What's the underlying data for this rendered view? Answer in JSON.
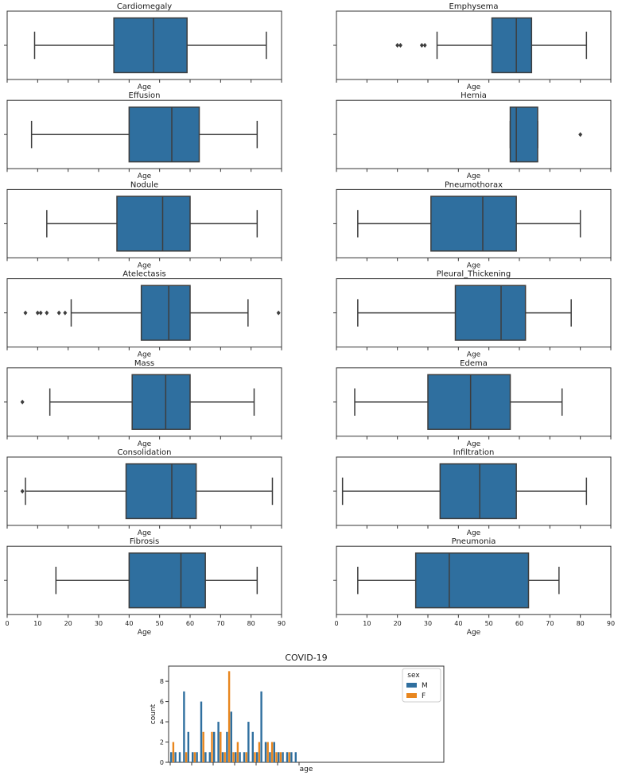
{
  "chart_data": {
    "boxplots": {
      "type": "boxplot",
      "xlabel": "Age",
      "xlim": [
        0,
        90
      ],
      "xticks": [
        0,
        10,
        20,
        30,
        40,
        50,
        60,
        70,
        80,
        90
      ],
      "box_color": "#2f6f9f",
      "panels": [
        {
          "title": "Cardiomegaly",
          "whisker_low": 9,
          "q1": 35,
          "median": 48,
          "q3": 59,
          "whisker_high": 85,
          "outliers": []
        },
        {
          "title": "Emphysema",
          "whisker_low": 33,
          "q1": 51,
          "median": 59,
          "q3": 64,
          "whisker_high": 82,
          "outliers": [
            20,
            21,
            28,
            29
          ]
        },
        {
          "title": "Effusion",
          "whisker_low": 8,
          "q1": 40,
          "median": 54,
          "q3": 63,
          "whisker_high": 82,
          "outliers": []
        },
        {
          "title": "Hernia",
          "whisker_low": 57,
          "q1": 57,
          "median": 59,
          "q3": 66,
          "whisker_high": 66,
          "outliers": [
            80
          ]
        },
        {
          "title": "Nodule",
          "whisker_low": 13,
          "q1": 36,
          "median": 51,
          "q3": 60,
          "whisker_high": 82,
          "outliers": []
        },
        {
          "title": "Pneumothorax",
          "whisker_low": 7,
          "q1": 31,
          "median": 48,
          "q3": 59,
          "whisker_high": 80,
          "outliers": []
        },
        {
          "title": "Atelectasis",
          "whisker_low": 21,
          "q1": 44,
          "median": 53,
          "q3": 60,
          "whisker_high": 79,
          "outliers": [
            6,
            10,
            11,
            13,
            17,
            19,
            89
          ]
        },
        {
          "title": "Pleural_Thickening",
          "whisker_low": 7,
          "q1": 39,
          "median": 54,
          "q3": 62,
          "whisker_high": 77,
          "outliers": []
        },
        {
          "title": "Mass",
          "whisker_low": 14,
          "q1": 41,
          "median": 52,
          "q3": 60,
          "whisker_high": 81,
          "outliers": [
            5
          ]
        },
        {
          "title": "Edema",
          "whisker_low": 6,
          "q1": 30,
          "median": 44,
          "q3": 57,
          "whisker_high": 74,
          "outliers": []
        },
        {
          "title": "Consolidation",
          "whisker_low": 6,
          "q1": 39,
          "median": 54,
          "q3": 62,
          "whisker_high": 87,
          "outliers": [
            5
          ]
        },
        {
          "title": "Infiltration",
          "whisker_low": 2,
          "q1": 34,
          "median": 47,
          "q3": 59,
          "whisker_high": 82,
          "outliers": []
        },
        {
          "title": "Fibrosis",
          "whisker_low": 16,
          "q1": 40,
          "median": 57,
          "q3": 65,
          "whisker_high": 82,
          "outliers": []
        },
        {
          "title": "Pneumonia",
          "whisker_low": 7,
          "q1": 26,
          "median": 37,
          "q3": 63,
          "whisker_high": 73,
          "outliers": []
        }
      ]
    },
    "covid": {
      "type": "bar",
      "title": "COVID-19",
      "xlabel": "age",
      "ylabel": "count",
      "ylim": [
        0,
        9.5
      ],
      "yticks": [
        0,
        2,
        4,
        6,
        8
      ],
      "legend": {
        "title": "sex",
        "position": "top-right"
      },
      "series": [
        {
          "name": "M",
          "color": "#2f6f9f",
          "values": [
            1,
            1,
            1,
            7,
            3,
            1,
            1,
            6,
            1,
            1,
            3,
            4,
            1,
            3,
            5,
            1,
            1,
            1,
            4,
            3,
            1,
            7,
            2,
            1,
            2,
            1,
            1,
            1,
            1,
            1
          ]
        },
        {
          "name": "F",
          "color": "#e8861e",
          "values": [
            2,
            0,
            0,
            1,
            0,
            1,
            0,
            3,
            0,
            3,
            0,
            3,
            1,
            9,
            1,
            2,
            0,
            1,
            0,
            1,
            2,
            0,
            2,
            2,
            1,
            1,
            0,
            1,
            0,
            0
          ]
        }
      ]
    }
  }
}
